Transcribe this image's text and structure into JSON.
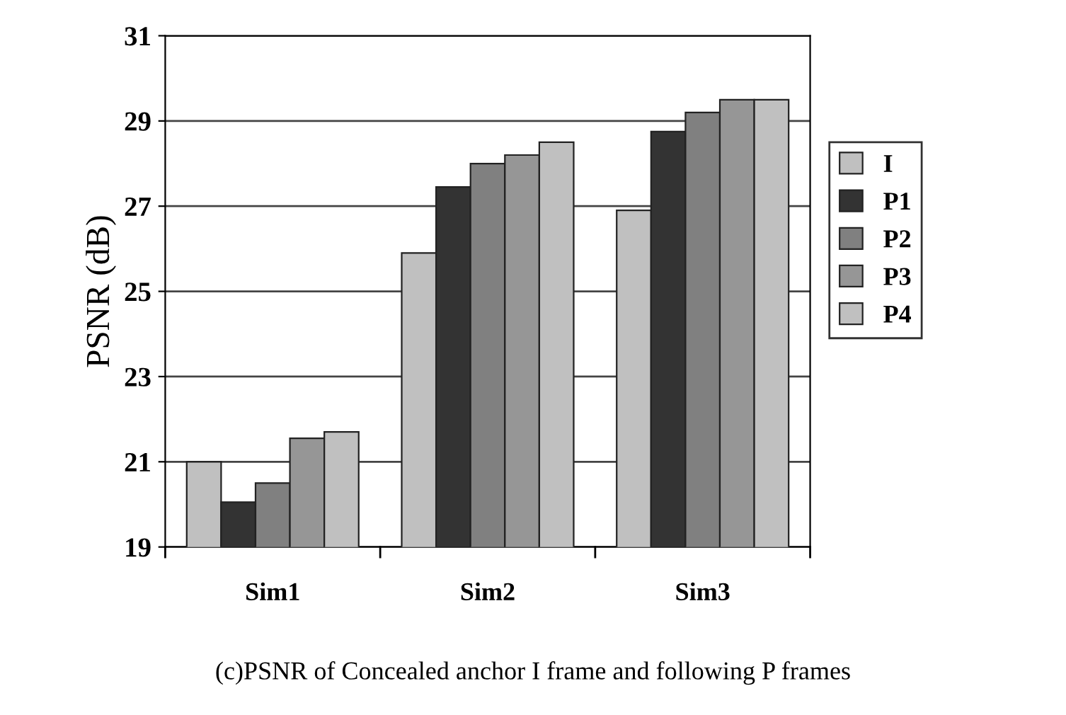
{
  "chart_data": {
    "type": "bar",
    "ylabel": "PSNR (dB)",
    "categories": [
      "Sim1",
      "Sim2",
      "Sim3"
    ],
    "series": [
      {
        "name": "I",
        "color": "#c0c0c0",
        "values": [
          21.0,
          25.9,
          26.9
        ]
      },
      {
        "name": "P1",
        "color": "#333333",
        "values": [
          20.05,
          27.45,
          28.75
        ]
      },
      {
        "name": "P2",
        "color": "#808080",
        "values": [
          20.5,
          28.0,
          29.2
        ]
      },
      {
        "name": "P3",
        "color": "#969696",
        "values": [
          21.55,
          28.2,
          29.5
        ]
      },
      {
        "name": "P4",
        "color": "#c0c0c0",
        "values": [
          21.7,
          28.5,
          29.5
        ]
      }
    ],
    "ylim": [
      19,
      31
    ],
    "yticks": [
      19,
      21,
      23,
      25,
      27,
      29,
      31
    ],
    "grid": "y",
    "legend": "right",
    "annotations": [
      "(c)PSNR of Concealed anchor I frame and following P frames"
    ]
  }
}
